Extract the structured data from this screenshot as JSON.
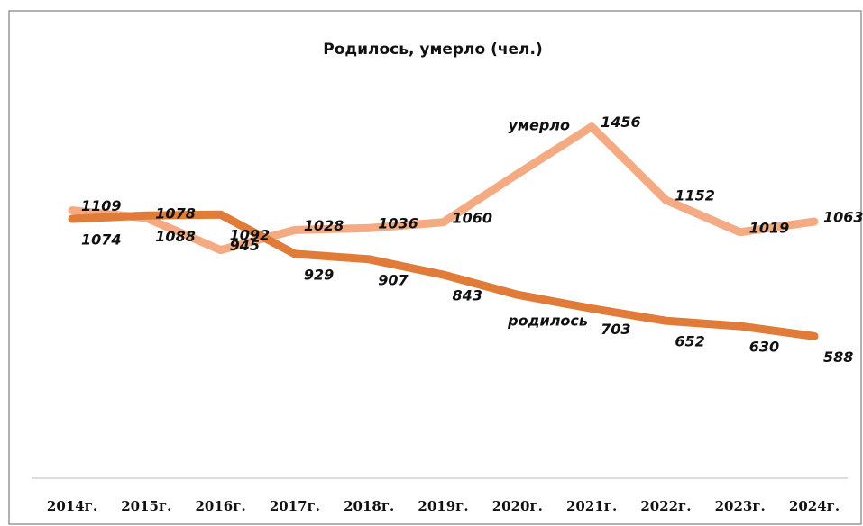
{
  "chart_data": {
    "type": "line",
    "title": "Родилось, умерло (чел.)",
    "categories": [
      "2014г.",
      "2015г.",
      "2016г.",
      "2017г.",
      "2018г.",
      "2019г.",
      "2020г.",
      "2021г.",
      "2022г.",
      "2023г.",
      "2024г."
    ],
    "series": [
      {
        "name": "умерло",
        "color": "#f4ab83",
        "values": [
          1109,
          1078,
          945,
          1028,
          1036,
          1060,
          1260,
          1456,
          1152,
          1019,
          1063
        ],
        "value_labels": [
          "1109",
          "1078",
          "945",
          "1028",
          "1036",
          "1060",
          null,
          "1456",
          "1152",
          "1019",
          "1063"
        ]
      },
      {
        "name": "родилось",
        "color": "#e07b39",
        "values": [
          1074,
          1088,
          1092,
          929,
          907,
          843,
          760,
          703,
          652,
          630,
          588
        ],
        "value_labels": [
          "1074",
          "1088",
          "1092",
          "929",
          "907",
          "843",
          null,
          "703",
          "652",
          "630",
          "588"
        ]
      }
    ],
    "ylim": [
      0,
      1600
    ]
  }
}
